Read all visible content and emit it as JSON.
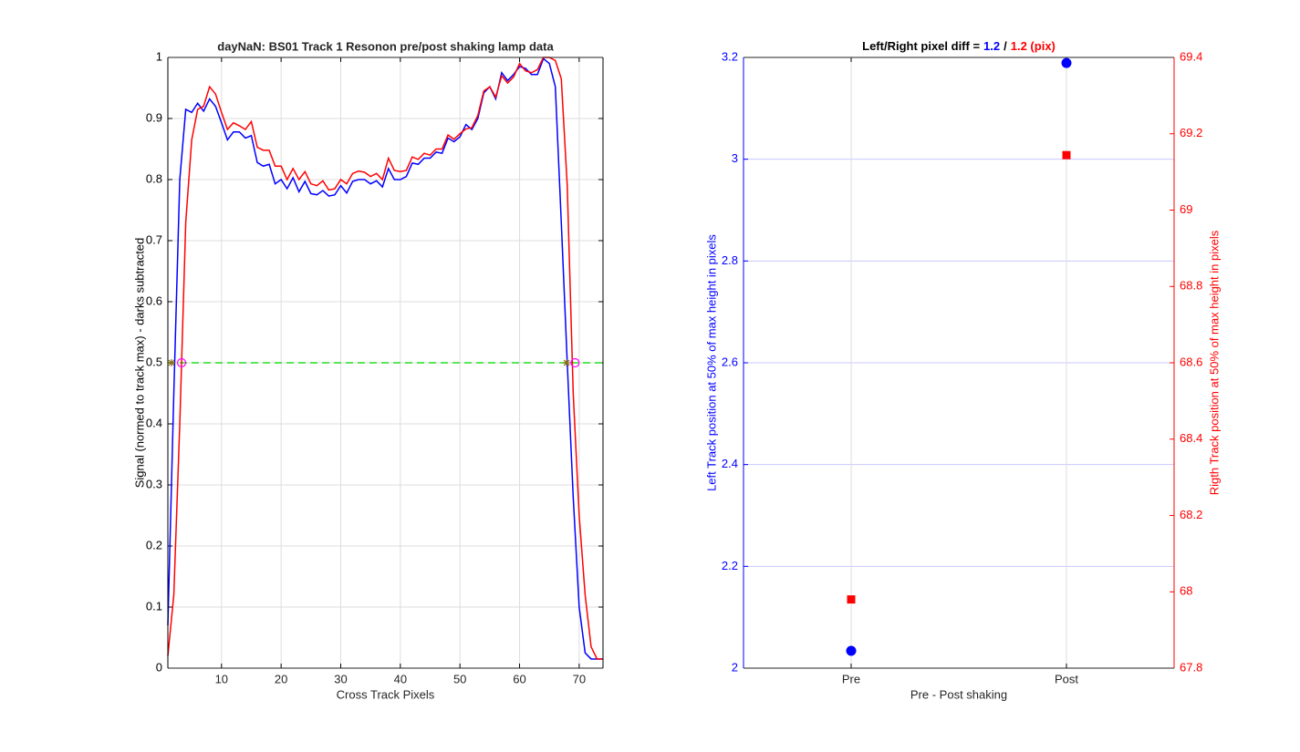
{
  "chart_data": [
    {
      "type": "line",
      "title": "dayNaN: BS01  Track 1 Resonon pre/post shaking lamp data",
      "xlabel": "Cross Track Pixels",
      "ylabel": "Signal (normed to track max) - darks subtracted",
      "x": [
        1,
        2,
        3,
        4,
        5,
        6,
        7,
        8,
        9,
        10,
        11,
        12,
        13,
        14,
        15,
        16,
        17,
        18,
        19,
        20,
        21,
        22,
        23,
        24,
        25,
        26,
        27,
        28,
        29,
        30,
        31,
        32,
        33,
        34,
        35,
        36,
        37,
        38,
        39,
        40,
        41,
        42,
        43,
        44,
        45,
        46,
        47,
        48,
        49,
        50,
        51,
        52,
        53,
        54,
        55,
        56,
        57,
        58,
        59,
        60,
        61,
        62,
        63,
        64,
        65,
        66,
        67,
        68,
        69,
        70,
        71,
        72,
        73,
        74
      ],
      "series": [
        {
          "color": "#0000ff",
          "values": [
            0.07,
            0.45,
            0.8,
            0.915,
            0.91,
            0.925,
            0.912,
            0.932,
            0.92,
            0.893,
            0.865,
            0.878,
            0.878,
            0.868,
            0.872,
            0.828,
            0.822,
            0.825,
            0.793,
            0.8,
            0.785,
            0.803,
            0.78,
            0.797,
            0.777,
            0.775,
            0.782,
            0.773,
            0.775,
            0.79,
            0.778,
            0.797,
            0.8,
            0.8,
            0.793,
            0.798,
            0.788,
            0.818,
            0.8,
            0.8,
            0.805,
            0.827,
            0.825,
            0.835,
            0.835,
            0.845,
            0.843,
            0.868,
            0.862,
            0.87,
            0.89,
            0.882,
            0.9,
            0.942,
            0.952,
            0.932,
            0.975,
            0.962,
            0.972,
            0.985,
            0.982,
            0.972,
            0.972,
            0.998,
            0.99,
            0.952,
            0.73,
            0.5,
            0.28,
            0.1,
            0.025,
            0.015,
            0.015,
            0.015
          ]
        },
        {
          "color": "#ff0000",
          "values": [
            0.02,
            0.12,
            0.4,
            0.73,
            0.865,
            0.915,
            0.92,
            0.952,
            0.94,
            0.91,
            0.882,
            0.893,
            0.888,
            0.882,
            0.895,
            0.853,
            0.848,
            0.848,
            0.822,
            0.822,
            0.8,
            0.818,
            0.8,
            0.813,
            0.793,
            0.79,
            0.798,
            0.783,
            0.785,
            0.8,
            0.793,
            0.81,
            0.814,
            0.812,
            0.805,
            0.81,
            0.8,
            0.835,
            0.815,
            0.813,
            0.815,
            0.837,
            0.833,
            0.843,
            0.84,
            0.85,
            0.85,
            0.873,
            0.866,
            0.875,
            0.883,
            0.885,
            0.905,
            0.945,
            0.952,
            0.935,
            0.97,
            0.958,
            0.968,
            0.99,
            0.978,
            0.975,
            0.98,
            1.0,
            1.0,
            0.995,
            0.965,
            0.79,
            0.45,
            0.25,
            0.12,
            0.035,
            0.015,
            0.015
          ]
        }
      ],
      "hline": {
        "value": 0.5,
        "color": "#22dd22",
        "dashed": true
      },
      "markers": [
        {
          "marker": "asterisk",
          "color": "#8b6b10",
          "x": [
            1.6,
            67.9
          ],
          "y": [
            0.5,
            0.5
          ]
        },
        {
          "marker": "circle",
          "color": "#ff00ff",
          "x": [
            3.3,
            69.3
          ],
          "y": [
            0.5,
            0.5
          ]
        }
      ],
      "xlim": [
        1,
        74
      ],
      "xticks": [
        10,
        20,
        30,
        40,
        50,
        60,
        70
      ],
      "ylim": [
        0,
        1
      ],
      "yticks": [
        0,
        0.1,
        0.2,
        0.3,
        0.4,
        0.5,
        0.6,
        0.7,
        0.8,
        0.9,
        1
      ],
      "grid": true,
      "xgrid_color": "#dddddd",
      "ygrid_color": "#dddddd",
      "y_color": "#000000"
    },
    {
      "type": "scatter",
      "title_segments": [
        {
          "text": "Left/Right pixel diff =",
          "color": "#000000"
        },
        {
          "text": "1.2",
          "color": "#0000ff"
        },
        {
          "text": "/",
          "color": "#000000"
        },
        {
          "text": "1.2 (pix)",
          "color": "#ff0000"
        }
      ],
      "xlabel": "Pre - Post shaking",
      "ylabel": "Left Track position at 50% of max height in pixels",
      "y2label": "Rigth Track position at 50% of max height in pixels",
      "categories": [
        "Pre",
        "Post"
      ],
      "xlim": [
        0.5,
        2.5
      ],
      "series": [
        {
          "color": "#0000ff",
          "marker": "circle",
          "values": [
            2.034,
            3.189
          ]
        },
        {
          "color": "#ff0000",
          "marker": "square",
          "axis": "y2",
          "values": [
            67.98,
            69.144
          ]
        }
      ],
      "ylim": [
        2,
        3.2
      ],
      "yticks": [
        2,
        2.2,
        2.4,
        2.6,
        2.8,
        3,
        3.2
      ],
      "y2lim": [
        67.8,
        69.4
      ],
      "y2ticks": [
        67.8,
        68,
        68.2,
        68.4,
        68.6,
        68.8,
        69,
        69.2,
        69.4
      ],
      "grid": true,
      "xgrid_color": "#dddddd",
      "ygrid_color": "#c8c8ff",
      "y_color": "#0000ff",
      "y2_color": "#ff0000"
    }
  ]
}
